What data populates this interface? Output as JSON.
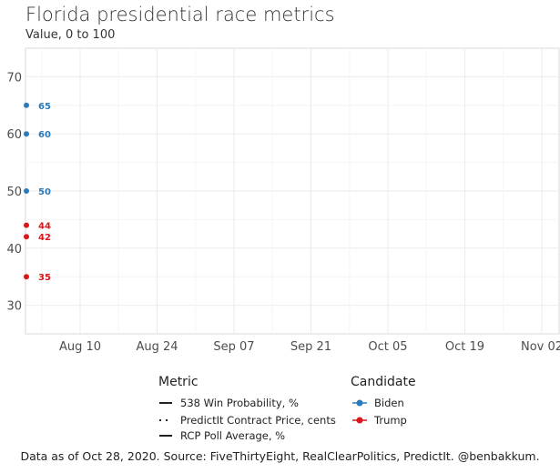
{
  "chart_data": {
    "type": "line",
    "title": "Florida presidential race metrics",
    "subtitle": "Value, 0 to 100",
    "caption": "Data as of Oct 28, 2020. Source: FiveThirtyEight, RealClearPolitics, PredictIt. @benbakkum.",
    "x_ticks": [
      "Aug 10",
      "Aug 24",
      "Sep 07",
      "Sep 21",
      "Oct 05",
      "Oct 19",
      "Nov 02"
    ],
    "y_ticks": [
      30,
      40,
      50,
      60,
      70
    ],
    "ylim": [
      25,
      75
    ],
    "colors": {
      "Biden": "#2b7bba",
      "Trump": "#d7191c"
    },
    "points": [
      {
        "candidate": "Biden",
        "value": 65
      },
      {
        "candidate": "Biden",
        "value": 60
      },
      {
        "candidate": "Biden",
        "value": 50
      },
      {
        "candidate": "Trump",
        "value": 44
      },
      {
        "candidate": "Trump",
        "value": 42
      },
      {
        "candidate": "Trump",
        "value": 35
      }
    ]
  },
  "legend": {
    "metric_title": "Metric",
    "metric_items": [
      "538 Win Probability, %",
      "PredictIt Contract Price, cents",
      "RCP Poll Average, %"
    ],
    "candidate_title": "Candidate",
    "candidate_items": [
      "Biden",
      "Trump"
    ]
  }
}
